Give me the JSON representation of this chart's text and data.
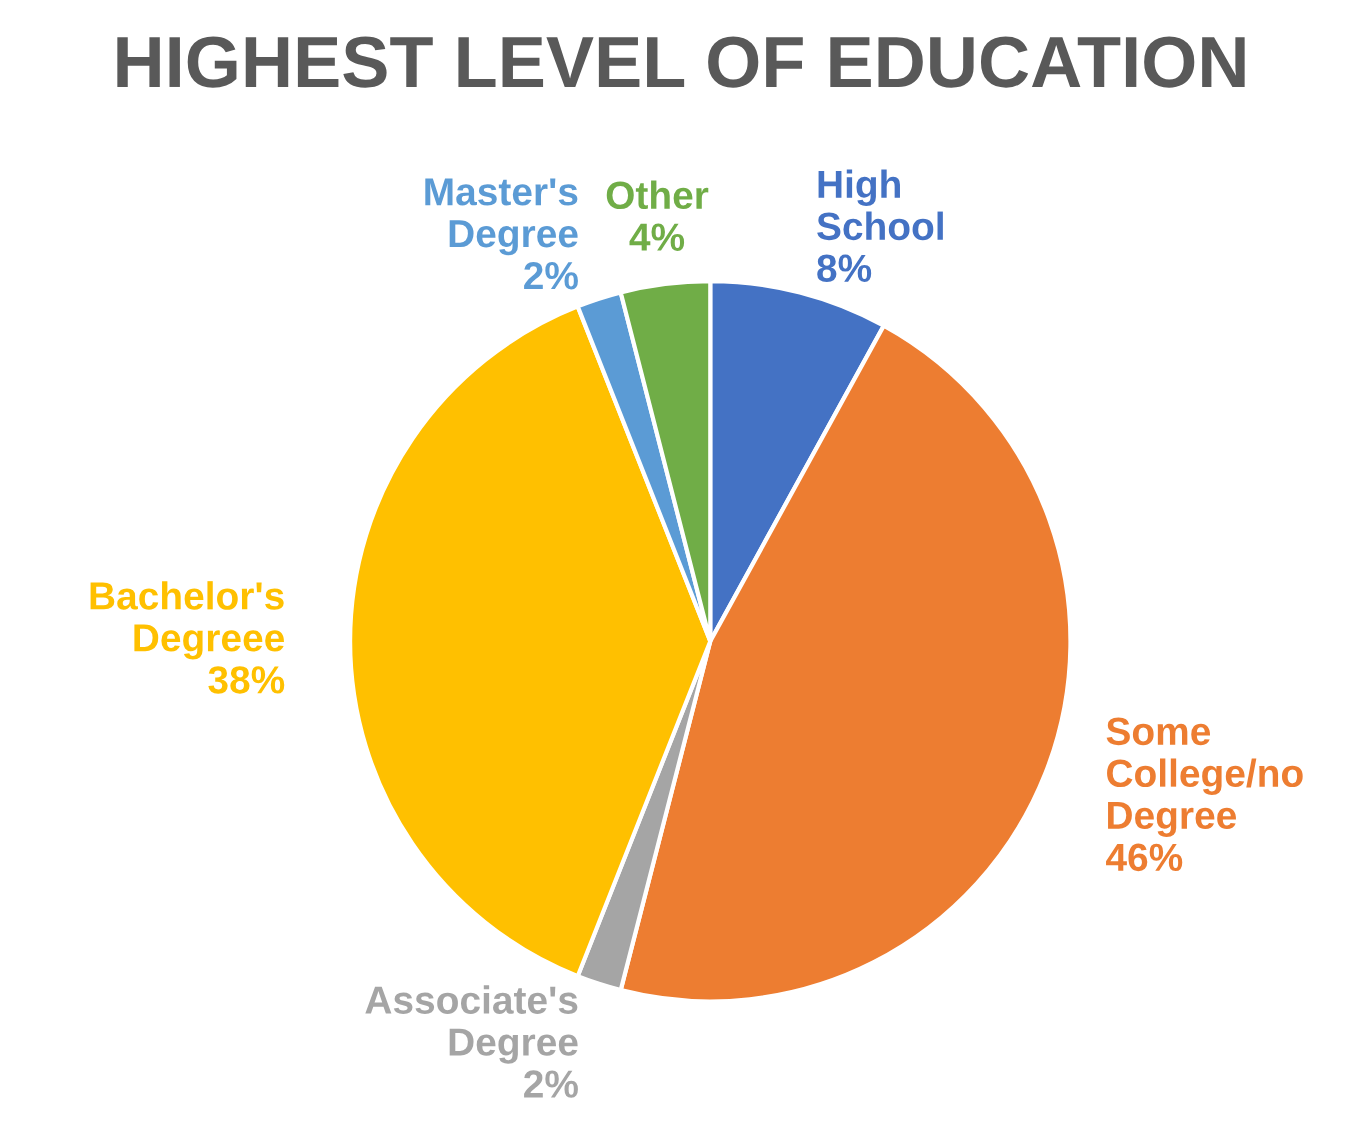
{
  "chart_data": {
    "type": "pie",
    "title": "HIGHEST LEVEL OF EDUCATION",
    "categories": [
      "High\nSchool",
      "Some\nCollege/no\nDegree",
      "Associate's\nDegree",
      "Bachelor's\nDegreee",
      "Master's\nDegree",
      "Other"
    ],
    "values": [
      8,
      46,
      2,
      38,
      2,
      4
    ],
    "value_labels": [
      "8%",
      "46%",
      "2%",
      "38%",
      "2%",
      "4%"
    ],
    "colors": [
      "#4472c4",
      "#ed7d31",
      "#a5a5a5",
      "#ffc000",
      "#5b9bd5",
      "#70ad47"
    ]
  }
}
